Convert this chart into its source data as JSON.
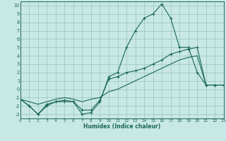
{
  "xlabel": "Humidex (Indice chaleur)",
  "bg_color": "#c8e8e5",
  "grid_color": "#a0c8c5",
  "line_color": "#1a6858",
  "x_values": [
    0,
    1,
    2,
    3,
    4,
    5,
    6,
    7,
    8,
    9,
    10,
    11,
    12,
    13,
    14,
    15,
    16,
    17,
    18,
    19,
    20,
    21,
    22,
    23
  ],
  "line1_y": [
    -1.2,
    -2.0,
    -3.0,
    -2.0,
    -1.5,
    -1.5,
    -1.5,
    -3.0,
    -2.8,
    -1.5,
    1.5,
    2.0,
    5.0,
    7.0,
    8.5,
    9.0,
    10.2,
    8.5,
    5.0,
    5.0,
    2.0,
    0.5,
    0.5,
    0.5
  ],
  "line2_y": [
    -1.2,
    -2.0,
    -3.0,
    -1.8,
    -1.5,
    -1.3,
    -1.5,
    -2.5,
    -2.5,
    -1.3,
    1.2,
    1.5,
    2.0,
    2.2,
    2.5,
    3.0,
    3.5,
    4.2,
    4.5,
    4.8,
    5.0,
    0.5,
    0.5,
    0.5
  ],
  "line3_y": [
    -1.2,
    -1.5,
    -1.8,
    -1.5,
    -1.2,
    -1.0,
    -1.2,
    -1.5,
    -1.2,
    -1.0,
    -0.3,
    0.0,
    0.5,
    1.0,
    1.5,
    2.0,
    2.5,
    3.0,
    3.5,
    3.8,
    4.0,
    0.5,
    0.5,
    0.5
  ],
  "xlim": [
    0,
    23
  ],
  "ylim": [
    -3.5,
    10.5
  ],
  "yticks": [
    -3,
    -2,
    -1,
    0,
    1,
    2,
    3,
    4,
    5,
    6,
    7,
    8,
    9,
    10
  ],
  "xticks": [
    0,
    1,
    2,
    3,
    4,
    5,
    6,
    7,
    8,
    9,
    10,
    11,
    12,
    13,
    14,
    15,
    16,
    17,
    18,
    19,
    20,
    21,
    22,
    23
  ]
}
